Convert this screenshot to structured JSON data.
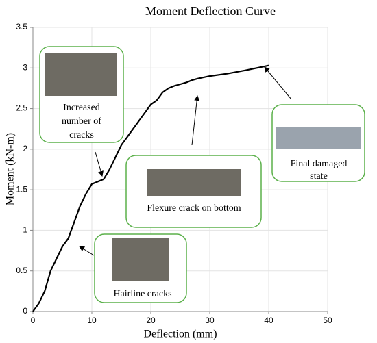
{
  "chart_data": {
    "type": "line",
    "title": "Moment Deflection Curve",
    "xlabel": "Deflection (mm)",
    "ylabel": "Moment (kN-m)",
    "x": [
      0,
      1,
      2,
      3,
      4,
      5,
      6,
      7,
      8,
      9,
      10,
      11,
      12,
      13,
      14,
      15,
      16,
      17,
      18,
      19,
      20,
      21,
      22,
      23,
      24,
      25,
      26,
      27,
      28,
      30,
      33,
      36,
      40
    ],
    "values": [
      0,
      0.1,
      0.25,
      0.5,
      0.65,
      0.8,
      0.9,
      1.1,
      1.3,
      1.45,
      1.57,
      1.6,
      1.63,
      1.75,
      1.9,
      2.05,
      2.15,
      2.25,
      2.35,
      2.45,
      2.55,
      2.6,
      2.7,
      2.75,
      2.78,
      2.8,
      2.82,
      2.85,
      2.87,
      2.9,
      2.93,
      2.97,
      3.03
    ],
    "color": "#000000",
    "xlim": [
      0,
      50
    ],
    "xticks": [
      0,
      10,
      20,
      30,
      40,
      50
    ],
    "ylim": [
      0,
      3.5
    ],
    "yticks": [
      0,
      0.5,
      1,
      1.5,
      2,
      2.5,
      3,
      3.5
    ],
    "grid": true,
    "annotations": [
      {
        "lines": [
          "Increased",
          "number of",
          "cracks"
        ]
      },
      {
        "lines": [
          "Final damaged",
          "state"
        ]
      },
      {
        "lines": [
          "Flexure crack on bottom"
        ]
      },
      {
        "lines": [
          "Hairline cracks"
        ]
      }
    ]
  }
}
